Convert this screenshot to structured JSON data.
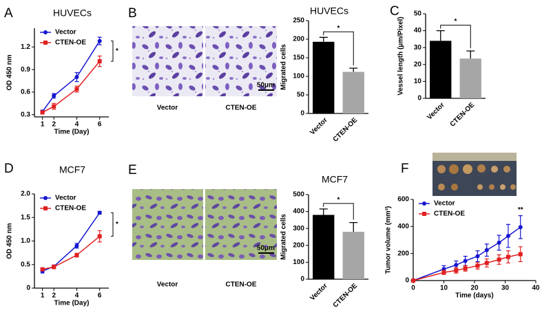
{
  "chart_data": [
    {
      "panel": "A",
      "type": "line",
      "title": "HUVECs",
      "xlabel": "Time (Day)",
      "ylabel": "OD 450 nm",
      "x": [
        1,
        2,
        4,
        6
      ],
      "xlim": [
        0.3,
        6.8
      ],
      "xticks": [
        1,
        2,
        4,
        6
      ],
      "ylim": [
        0.27,
        1.45
      ],
      "yticks": [
        0.3,
        0.6,
        0.9,
        1.2
      ],
      "series": [
        {
          "name": "Vector",
          "color": "#1515d0",
          "marker": "circle",
          "values": [
            0.34,
            0.55,
            0.8,
            1.28
          ],
          "errors": [
            0.02,
            0.03,
            0.06,
            0.05
          ]
        },
        {
          "name": "CTEN-OE",
          "color": "#e02020",
          "marker": "square",
          "values": [
            0.33,
            0.41,
            0.64,
            1.01
          ],
          "errors": [
            0.02,
            0.04,
            0.04,
            0.07
          ]
        }
      ],
      "legend": "upper-left",
      "annotation": "*"
    },
    {
      "panel": "B",
      "type": "bar",
      "title": "HUVECs",
      "image_labels": [
        "Vector",
        "CTEN-OE"
      ],
      "scale_bar": "50μm",
      "ylabel": "Migrated cells",
      "categories": [
        "Vector",
        "CTEN-OE"
      ],
      "values": [
        193,
        112
      ],
      "errors": [
        12,
        10
      ],
      "colors": [
        "#000000",
        "#a6a6a6"
      ],
      "ylim": [
        0,
        250
      ],
      "yticks": [
        0,
        50,
        100,
        150,
        200,
        250
      ],
      "annotation": "*"
    },
    {
      "panel": "C",
      "type": "bar",
      "ylabel": "Vessel length (μm/Pixel)",
      "categories": [
        "Vector",
        "CTEN-OE"
      ],
      "values": [
        34,
        23.5
      ],
      "errors": [
        6,
        4.5
      ],
      "colors": [
        "#000000",
        "#a6a6a6"
      ],
      "ylim": [
        0,
        50
      ],
      "yticks": [
        0,
        10,
        20,
        30,
        40,
        50
      ],
      "annotation": "*"
    },
    {
      "panel": "D",
      "type": "line",
      "title": "MCF7",
      "xlabel": "Time (Day)",
      "ylabel": "OD 450 nm",
      "x": [
        1,
        2,
        4,
        6
      ],
      "xlim": [
        0.3,
        6.8
      ],
      "xticks": [
        1,
        2,
        4,
        6
      ],
      "ylim": [
        0,
        2
      ],
      "yticks": [
        0,
        0.5,
        {
          "value": 1,
          "label": "1.0"
        },
        1.5,
        {
          "value": 2,
          "label": "2.0"
        }
      ],
      "series": [
        {
          "name": "Vector",
          "color": "#1515d0",
          "marker": "circle",
          "values": [
            0.36,
            0.46,
            0.9,
            1.6
          ],
          "errors": [
            0.04,
            0.03,
            0.05,
            0.03
          ]
        },
        {
          "name": "CTEN-OE",
          "color": "#e02020",
          "marker": "square",
          "values": [
            0.4,
            0.45,
            0.7,
            1.1
          ],
          "errors": [
            0.03,
            0.04,
            0.04,
            0.12
          ]
        }
      ],
      "legend": "upper-left",
      "annotation": "*"
    },
    {
      "panel": "E",
      "type": "bar",
      "title": "MCF7",
      "image_labels": [
        "Vector",
        "CTEN-OE"
      ],
      "scale_bar": "50μm",
      "ylabel": "Migrated cells",
      "categories": [
        "Vector",
        "CTEN-OE"
      ],
      "values": [
        380,
        280
      ],
      "errors": [
        35,
        55
      ],
      "colors": [
        "#000000",
        "#a6a6a6"
      ],
      "ylim": [
        0,
        500
      ],
      "yticks": [
        0,
        100,
        200,
        300,
        400,
        500
      ],
      "annotation": "*"
    },
    {
      "panel": "F",
      "type": "line",
      "xlabel": "Time (days)",
      "ylabel": "Tumor volume (mm³)",
      "x": [
        0,
        10,
        14,
        17,
        21,
        24,
        28,
        31,
        35
      ],
      "xlim": [
        0,
        40
      ],
      "xticks": [
        0,
        10,
        20,
        30,
        40
      ],
      "ylim": [
        0,
        600
      ],
      "yticks": [
        0,
        200,
        400,
        600
      ],
      "series": [
        {
          "name": "Vector",
          "color": "#1515d0",
          "marker": "circle",
          "values": [
            0,
            85,
            115,
            145,
            180,
            225,
            280,
            330,
            395
          ],
          "errors": [
            0,
            25,
            30,
            35,
            40,
            45,
            55,
            85,
            85
          ]
        },
        {
          "name": "CTEN-OE",
          "color": "#e02020",
          "marker": "square",
          "values": [
            0,
            60,
            75,
            90,
            110,
            130,
            155,
            175,
            195
          ],
          "errors": [
            0,
            15,
            20,
            20,
            25,
            30,
            35,
            45,
            55
          ]
        }
      ],
      "legend": "upper-left",
      "annotation": "**"
    }
  ]
}
